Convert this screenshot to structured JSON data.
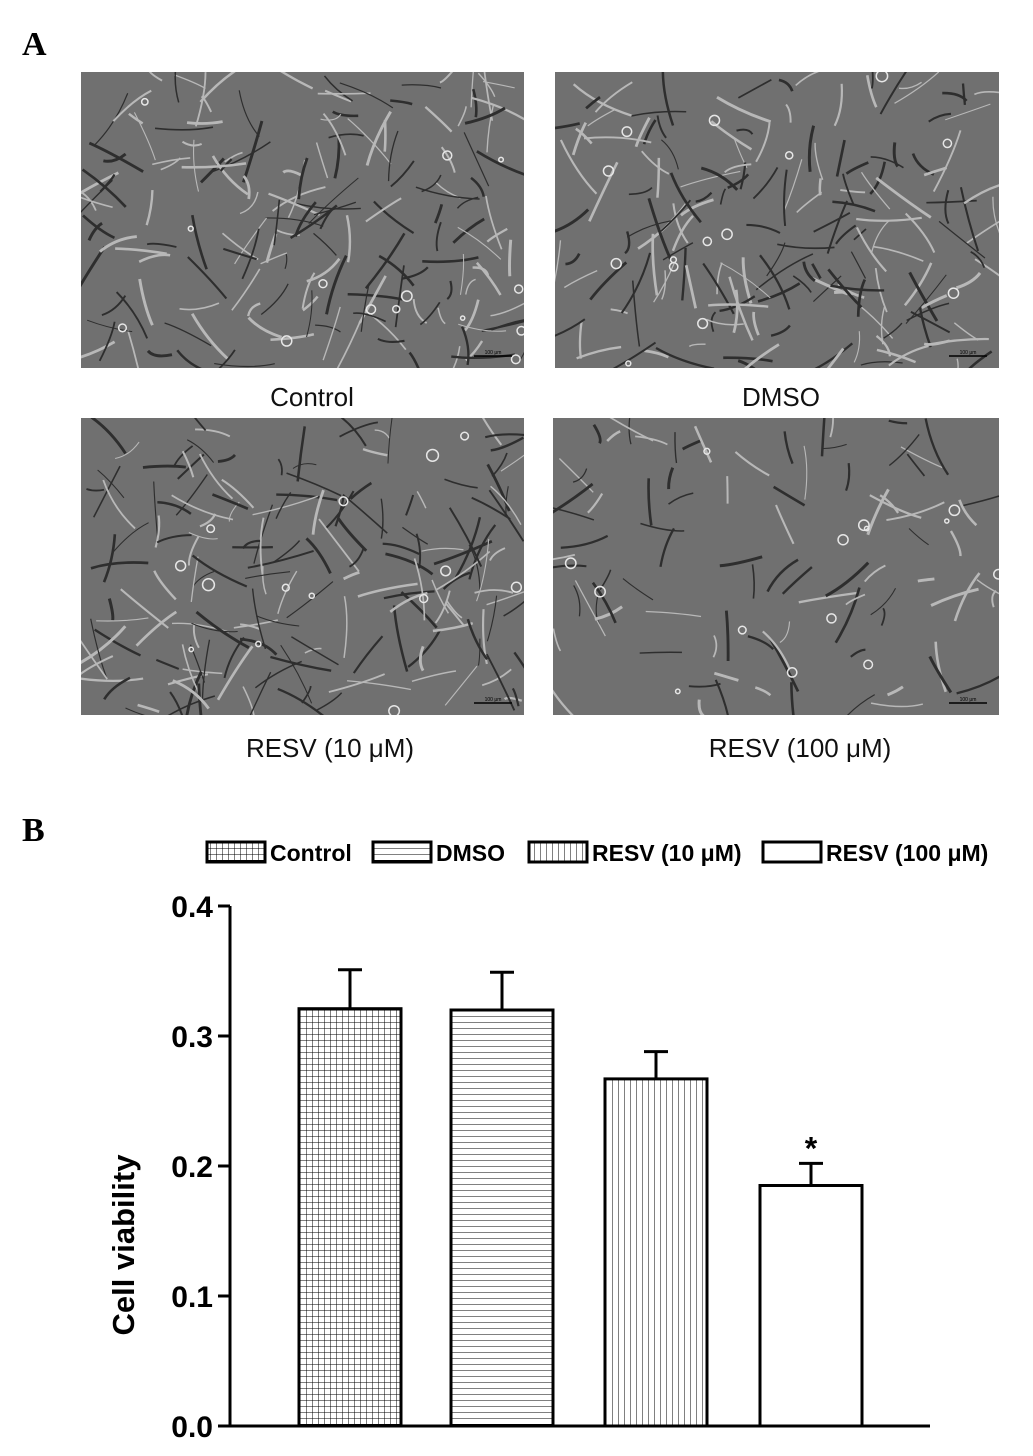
{
  "panels": {
    "a_label": "A",
    "b_label": "B"
  },
  "micrographs": [
    {
      "caption": "Control",
      "scale_bar": "100 μm"
    },
    {
      "caption": "DMSO",
      "scale_bar": "100 μm"
    },
    {
      "caption": "RESV (10 μM)",
      "scale_bar": "100 μm"
    },
    {
      "caption": "RESV (100 μM)",
      "scale_bar": "100 μm"
    }
  ],
  "chart_data": {
    "type": "bar",
    "categories": [
      "Control",
      "DMSO",
      "RESV (10 μM)",
      "RESV (100 μM)"
    ],
    "values": [
      0.321,
      0.32,
      0.267,
      0.185
    ],
    "errors": [
      0.03,
      0.029,
      0.021,
      0.017
    ],
    "patterns": [
      "grid",
      "horizontal",
      "vertical",
      "blank"
    ],
    "annotations": [
      "",
      "",
      "",
      "*"
    ],
    "legend": [
      "Control",
      "DMSO",
      "RESV (10 μM)",
      "RESV (100 μM)"
    ],
    "legend_position": "top",
    "ylabel": "Cell viability",
    "xlabel": "",
    "ylim": [
      0,
      0.4
    ],
    "yticks": [
      "0.0",
      "0.1",
      "0.2",
      "0.3",
      "0.4"
    ],
    "grid": false
  }
}
